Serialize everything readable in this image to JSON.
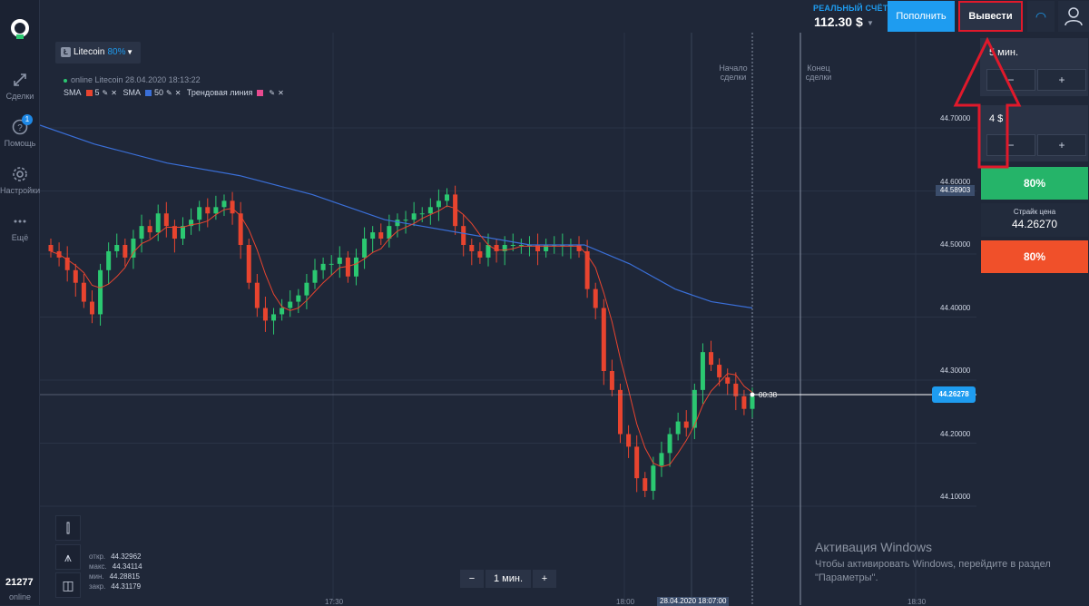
{
  "nav": {
    "trades": "Сделки",
    "help": "Помощь",
    "help_badge": "1",
    "settings": "Настройки",
    "more": "Ещё",
    "account_number": "21277",
    "status": "online"
  },
  "header": {
    "account_type": "РЕАЛЬНЫЙ СЧЁТ",
    "balance": "112.30 $",
    "deposit": "Пополнить",
    "withdraw": "Вывести"
  },
  "chart": {
    "asset": "Litecoin",
    "payout": "80%",
    "info": "online Litecoin 28.04.2020 18:13:22",
    "sma1_label": "SMA",
    "sma1_period": "5",
    "sma2_label": "SMA",
    "sma2_period": "50",
    "trend_label": "Трендовая линия",
    "start_line": "Начало сделки",
    "end_line": "Конец сделки",
    "timer": "00:38",
    "current_price": "44.26278",
    "sma50_value": "44.58903",
    "timeframe": "1 мин.",
    "x_labels": [
      "17:30",
      "18:00",
      "18:30"
    ],
    "x_current": "28.04.2020 18:07:00",
    "ohlc": {
      "open_label": "откр.",
      "open": "44.32962",
      "high_label": "макс.",
      "high": "44.34114",
      "low_label": "мин.",
      "low": "44.28815",
      "close_label": "закр.",
      "close": "44.31179"
    }
  },
  "chart_data": {
    "type": "candlestick",
    "title": "Litecoin",
    "y_ticks": [
      "44.70000",
      "44.60000",
      "44.50000",
      "44.40000",
      "44.30000",
      "44.20000",
      "44.10000"
    ],
    "ylim": [
      44.0,
      44.76
    ],
    "x_labels": [
      "17:30",
      "18:00",
      "18:30"
    ],
    "series": [
      {
        "name": "SMA 5",
        "color": "#e8442f"
      },
      {
        "name": "SMA 50",
        "color": "#3a6fd8"
      }
    ],
    "current_price": 44.26278
  },
  "panel": {
    "time": "5 мин.",
    "amount": "4 $",
    "minus": "−",
    "plus": "+",
    "up_payout": "80%",
    "strike_label": "Страйк цена",
    "strike_value": "44.26270",
    "down_payout": "80%"
  },
  "watermark": {
    "title": "Активация Windows",
    "text": "Чтобы активировать Windows, перейдите в раздел \"Параметры\"."
  }
}
